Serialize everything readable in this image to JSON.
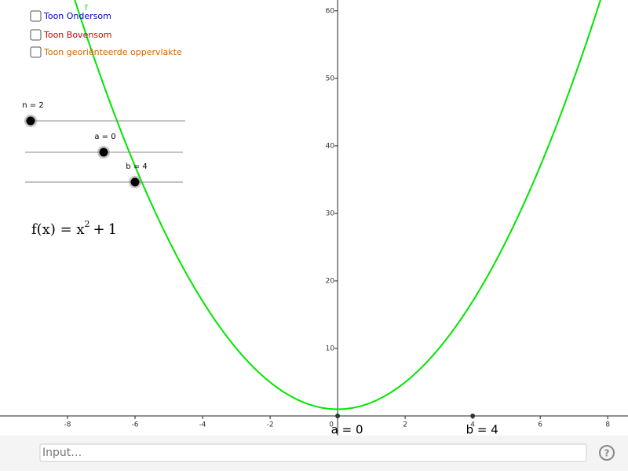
{
  "checkboxes": [
    {
      "label": "Toon Ondersom",
      "color": "#0000cc"
    },
    {
      "label": "Toon Bovensom",
      "color": "#cc0000"
    },
    {
      "label": "Toon georiënteerde oppervlakte",
      "color": "#cc6600"
    }
  ],
  "sliders": [
    {
      "label": "n = 2"
    },
    {
      "label": "a = 0"
    },
    {
      "label": "b = 4"
    }
  ],
  "formula": {
    "text": "f(x) = x",
    "exponent": 2,
    "plus": "+",
    "constant": 1
  },
  "graph": {
    "function_label": "f",
    "color": "#00e600",
    "xlim": [
      -10,
      8.6
    ],
    "ylim": [
      -2.9,
      61.6
    ],
    "xticks": [
      -8,
      -6,
      -4,
      -2,
      0,
      2,
      4,
      6,
      8
    ],
    "yticks": [
      10,
      20,
      30,
      40,
      50,
      60
    ],
    "points": [
      {
        "label": "a = 0",
        "x": 0
      },
      {
        "label": "b = 4",
        "x": 4
      }
    ]
  },
  "input_placeholder": "Input…",
  "help": "?"
}
